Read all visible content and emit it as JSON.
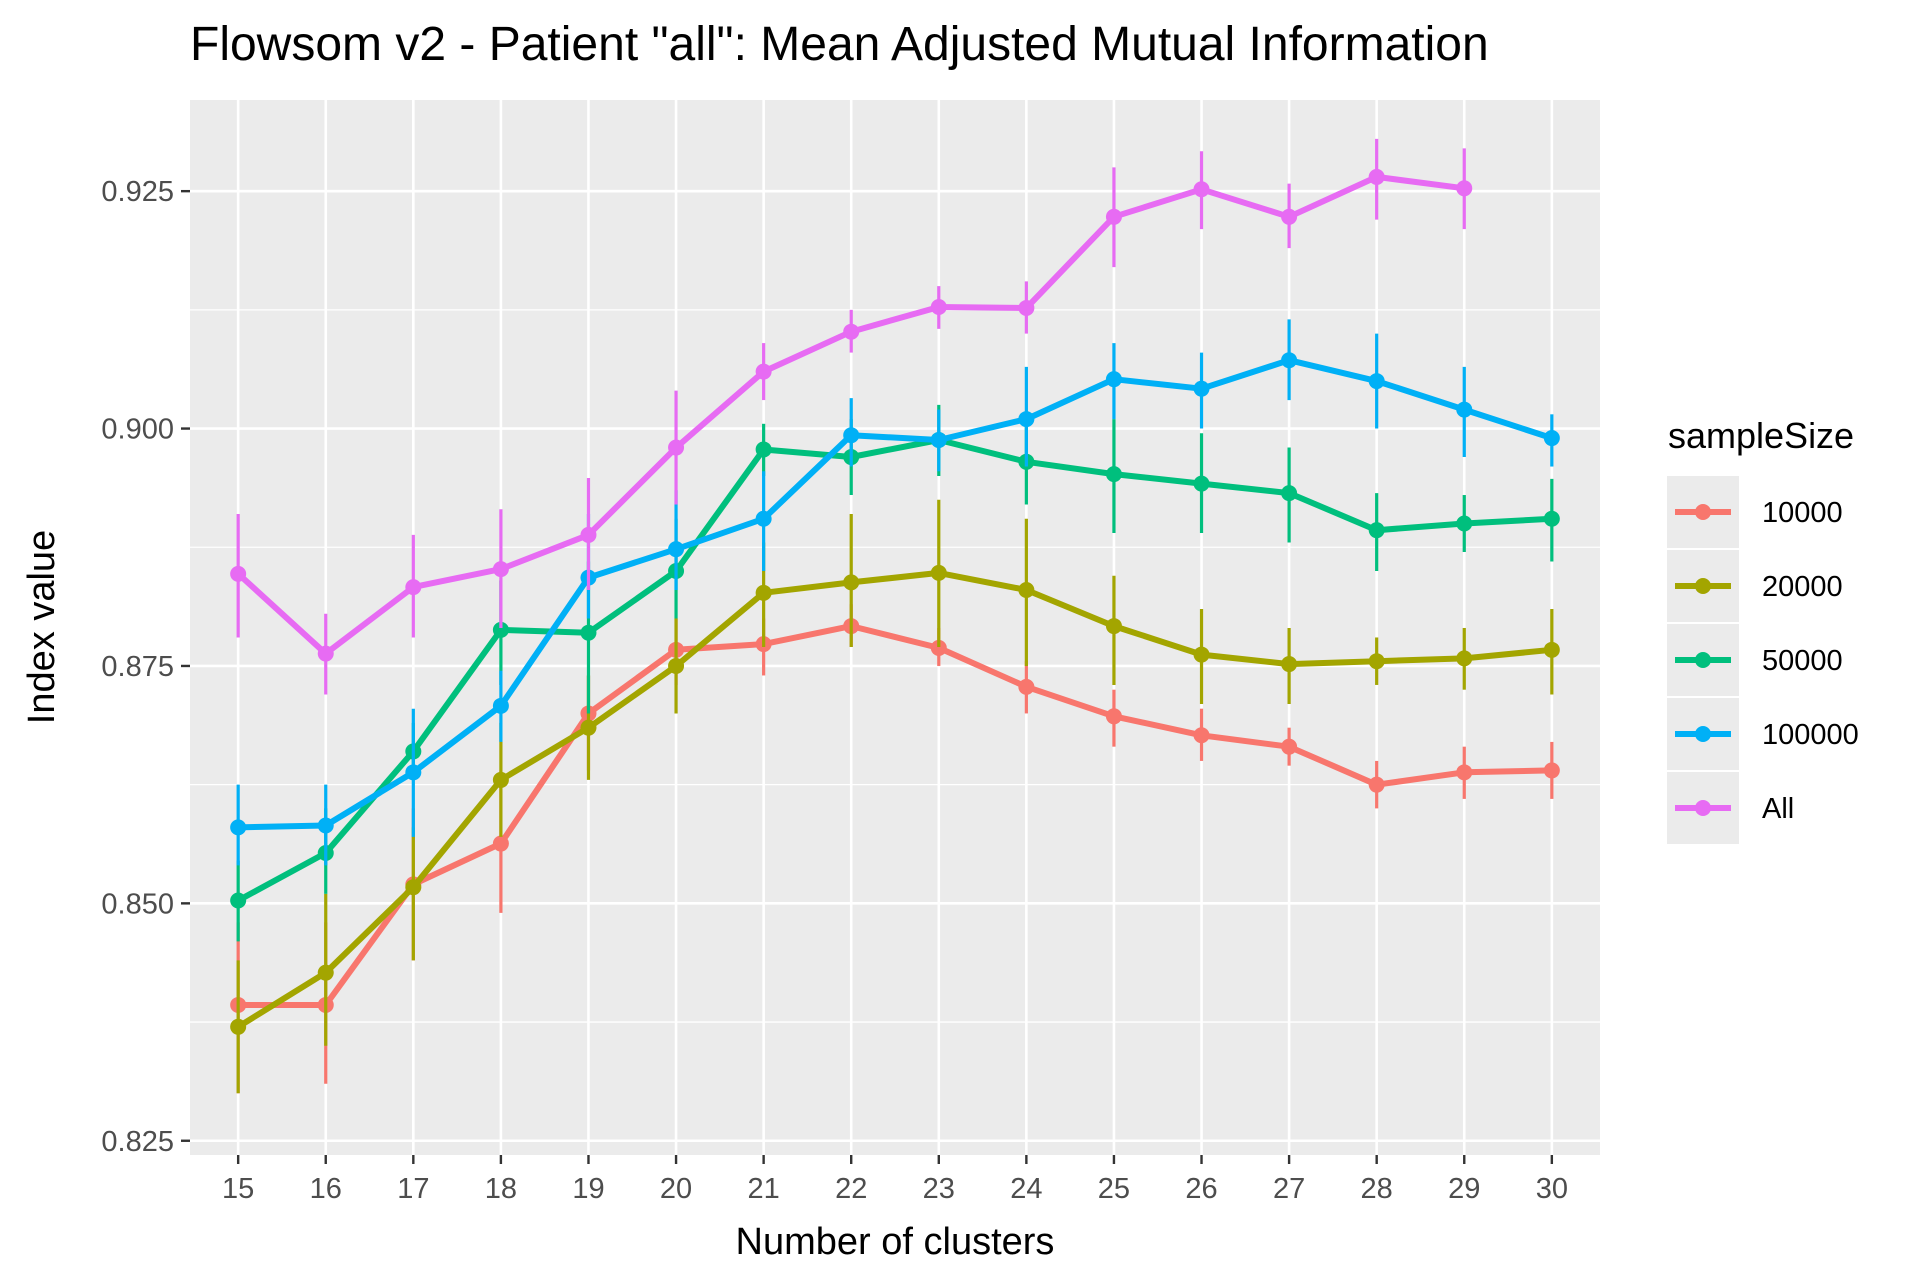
{
  "chart_data": {
    "type": "line",
    "title": "Flowsom v2 - Patient \"all\": Mean Adjusted Mutual Information",
    "xlabel": "Number of clusters",
    "ylabel": "Index value",
    "x": [
      15,
      16,
      17,
      18,
      19,
      20,
      21,
      22,
      23,
      24,
      25,
      26,
      27,
      28,
      29,
      30
    ],
    "xlim": [
      14.45,
      30.55
    ],
    "ylim": [
      0.8235,
      0.9346
    ],
    "y_ticks": [
      0.825,
      0.85,
      0.875,
      0.9,
      0.925
    ],
    "y_tick_labels": [
      "0.825",
      "0.850",
      "0.875",
      "0.900",
      "0.925"
    ],
    "grid": true,
    "panel_background": "#ebebeb",
    "legend": {
      "title": "sampleSize",
      "position": "right"
    },
    "series": [
      {
        "name": "10000",
        "color": "#f8766d",
        "values": [
          0.8393,
          0.8393,
          0.852,
          0.8563,
          0.87,
          0.8767,
          0.8773,
          0.8792,
          0.8769,
          0.8728,
          0.8697,
          0.8677,
          0.8665,
          0.8625,
          0.8638,
          0.864
        ],
        "err_low": [
          0.83,
          0.831,
          0.844,
          0.849,
          0.864,
          0.873,
          0.874,
          0.877,
          0.875,
          0.87,
          0.8665,
          0.865,
          0.8645,
          0.86,
          0.861,
          0.861
        ],
        "err_high": [
          0.848,
          0.848,
          0.86,
          0.864,
          0.874,
          0.88,
          0.88,
          0.8815,
          0.879,
          0.8755,
          0.8725,
          0.8705,
          0.8685,
          0.865,
          0.8665,
          0.867
        ]
      },
      {
        "name": "20000",
        "color": "#a3a500",
        "values": [
          0.837,
          0.8427,
          0.8517,
          0.863,
          0.8685,
          0.875,
          0.8827,
          0.8838,
          0.8848,
          0.883,
          0.8792,
          0.8762,
          0.8752,
          0.8755,
          0.8758,
          0.8767
        ],
        "err_low": [
          0.83,
          0.835,
          0.844,
          0.857,
          0.863,
          0.87,
          0.877,
          0.877,
          0.877,
          0.875,
          0.873,
          0.871,
          0.871,
          0.873,
          0.8725,
          0.872
        ],
        "err_high": [
          0.844,
          0.851,
          0.858,
          0.869,
          0.874,
          0.88,
          0.888,
          0.891,
          0.8925,
          0.8905,
          0.8845,
          0.881,
          0.879,
          0.878,
          0.879,
          0.881
        ]
      },
      {
        "name": "50000",
        "color": "#00bf7d",
        "values": [
          0.8503,
          0.8553,
          0.866,
          0.8788,
          0.8785,
          0.885,
          0.8978,
          0.897,
          0.8988,
          0.8965,
          0.8952,
          0.8942,
          0.8932,
          0.8893,
          0.89,
          0.8905
        ],
        "err_low": [
          0.846,
          0.851,
          0.863,
          0.873,
          0.87,
          0.88,
          0.895,
          0.893,
          0.895,
          0.892,
          0.889,
          0.889,
          0.888,
          0.885,
          0.887,
          0.886
        ],
        "err_high": [
          0.8545,
          0.86,
          0.869,
          0.884,
          0.886,
          0.8905,
          0.9005,
          0.901,
          0.9025,
          0.9005,
          0.901,
          0.8995,
          0.898,
          0.8932,
          0.893,
          0.8947
        ]
      },
      {
        "name": "100000",
        "color": "#00b0f6",
        "values": [
          0.858,
          0.8582,
          0.8638,
          0.8708,
          0.8843,
          0.8873,
          0.8905,
          0.8993,
          0.8988,
          0.901,
          0.9052,
          0.9042,
          0.9072,
          0.905,
          0.902,
          0.899
        ],
        "err_low": [
          0.854,
          0.854,
          0.857,
          0.867,
          0.88,
          0.883,
          0.885,
          0.896,
          0.8955,
          0.896,
          0.901,
          0.9,
          0.903,
          0.9,
          0.897,
          0.896
        ],
        "err_high": [
          0.8625,
          0.8625,
          0.8705,
          0.8745,
          0.891,
          0.8935,
          0.8955,
          0.9032,
          0.902,
          0.9065,
          0.909,
          0.908,
          0.9115,
          0.91,
          0.9065,
          0.9015
        ]
      },
      {
        "name": "All",
        "color": "#e76bf3",
        "values": [
          0.8847,
          0.8763,
          0.8833,
          0.8852,
          0.8888,
          0.898,
          0.906,
          0.9102,
          0.9128,
          0.9127,
          0.9223,
          0.9252,
          0.9223,
          0.9265,
          0.9253,
          null
        ],
        "err_low": [
          0.878,
          0.872,
          0.878,
          0.879,
          0.883,
          0.892,
          0.903,
          0.908,
          0.9105,
          0.91,
          0.917,
          0.921,
          0.919,
          0.922,
          0.921,
          null
        ],
        "err_high": [
          0.891,
          0.8805,
          0.8888,
          0.8915,
          0.8948,
          0.904,
          0.909,
          0.9125,
          0.915,
          0.9155,
          0.9275,
          0.9292,
          0.9258,
          0.9305,
          0.9295,
          null
        ]
      }
    ]
  }
}
